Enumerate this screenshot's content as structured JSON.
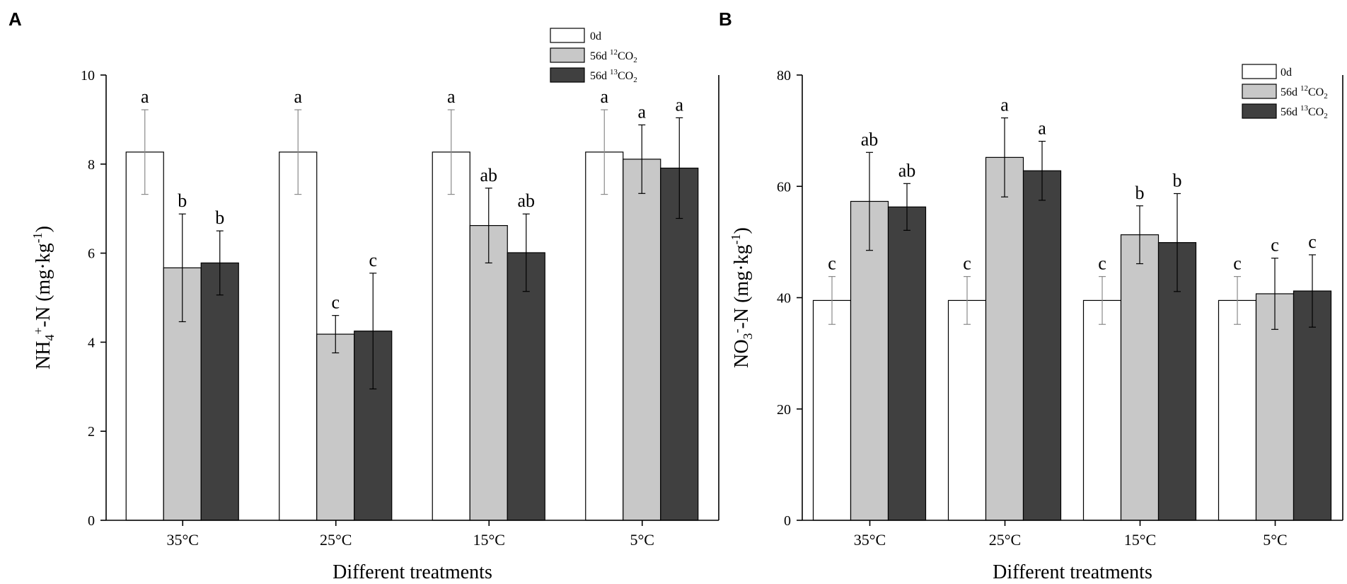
{
  "figure": {
    "colors": {
      "0d": "#ffffff",
      "12CO2": "#c8c8c8",
      "13CO2": "#404040",
      "err_light": "#8a8a8a",
      "err_dark": "#000000"
    },
    "series_keys": [
      "0d",
      "12CO2",
      "13CO2"
    ]
  },
  "chart_data": [
    {
      "type": "bar",
      "panel_label": "A",
      "title": "",
      "xlabel": "Different treatments",
      "ylabel": {
        "base": "NH",
        "sub": "4",
        "sup": "+",
        "rest": "-N (mg·kg",
        "unit_sup": "-1",
        "close": ")"
      },
      "categories": [
        "35°C",
        "25°C",
        "15°C",
        "5°C"
      ],
      "ylim": [
        0,
        10
      ],
      "yticks": [
        "0",
        "2",
        "4",
        "6",
        "8",
        "10"
      ],
      "grid": false,
      "legend_position": "top-right",
      "legend": [
        {
          "key": "0d",
          "label": "0d",
          "sup": "",
          "tail": "",
          "sub": ""
        },
        {
          "key": "12CO2",
          "label": "56d ",
          "sup": "12",
          "tail": "CO",
          "sub": "2"
        },
        {
          "key": "13CO2",
          "label": "56d ",
          "sup": "13",
          "tail": "CO",
          "sub": "2"
        }
      ],
      "series": [
        {
          "name": "0d",
          "values": [
            8.27,
            8.27,
            8.27,
            8.27
          ],
          "errors": [
            0.95,
            0.95,
            0.95,
            0.95
          ],
          "letters": [
            "a",
            "a",
            "a",
            "a"
          ]
        },
        {
          "name": "56d 12CO2",
          "values": [
            5.67,
            4.18,
            6.62,
            8.11
          ],
          "errors": [
            1.21,
            0.42,
            0.84,
            0.77
          ],
          "letters": [
            "b",
            "c",
            "ab",
            "a"
          ]
        },
        {
          "name": "56d 13CO2",
          "values": [
            5.78,
            4.25,
            6.01,
            7.91
          ],
          "errors": [
            0.72,
            1.3,
            0.87,
            1.13
          ],
          "letters": [
            "b",
            "c",
            "ab",
            "a"
          ]
        }
      ]
    },
    {
      "type": "bar",
      "panel_label": "B",
      "title": "",
      "xlabel": "Different treatments",
      "ylabel": {
        "base": "NO",
        "sub": "3",
        "sup": "-",
        "rest": "-N (mg·kg",
        "unit_sup": "-1",
        "close": ")"
      },
      "categories": [
        "35°C",
        "25°C",
        "15°C",
        "5°C"
      ],
      "ylim": [
        0,
        80
      ],
      "yticks": [
        "0",
        "20",
        "40",
        "60",
        "80"
      ],
      "grid": false,
      "legend_position": "top-right",
      "legend": [
        {
          "key": "0d",
          "label": "0d",
          "sup": "",
          "tail": "",
          "sub": ""
        },
        {
          "key": "12CO2",
          "label": "56d ",
          "sup": "12",
          "tail": "CO",
          "sub": "2"
        },
        {
          "key": "13CO2",
          "label": "56d ",
          "sup": "13",
          "tail": "CO",
          "sub": "2"
        }
      ],
      "series": [
        {
          "name": "0d",
          "values": [
            39.5,
            39.5,
            39.5,
            39.5
          ],
          "errors": [
            4.3,
            4.3,
            4.3,
            4.3
          ],
          "letters": [
            "c",
            "c",
            "c",
            "c"
          ]
        },
        {
          "name": "56d 12CO2",
          "values": [
            57.3,
            65.2,
            51.3,
            40.7
          ],
          "errors": [
            8.8,
            7.1,
            5.2,
            6.4
          ],
          "letters": [
            "ab",
            "a",
            "b",
            "c"
          ]
        },
        {
          "name": "56d 13CO2",
          "values": [
            56.3,
            62.8,
            49.9,
            41.2
          ],
          "errors": [
            4.2,
            5.3,
            8.8,
            6.5
          ],
          "letters": [
            "ab",
            "a",
            "b",
            "c"
          ]
        }
      ]
    }
  ]
}
